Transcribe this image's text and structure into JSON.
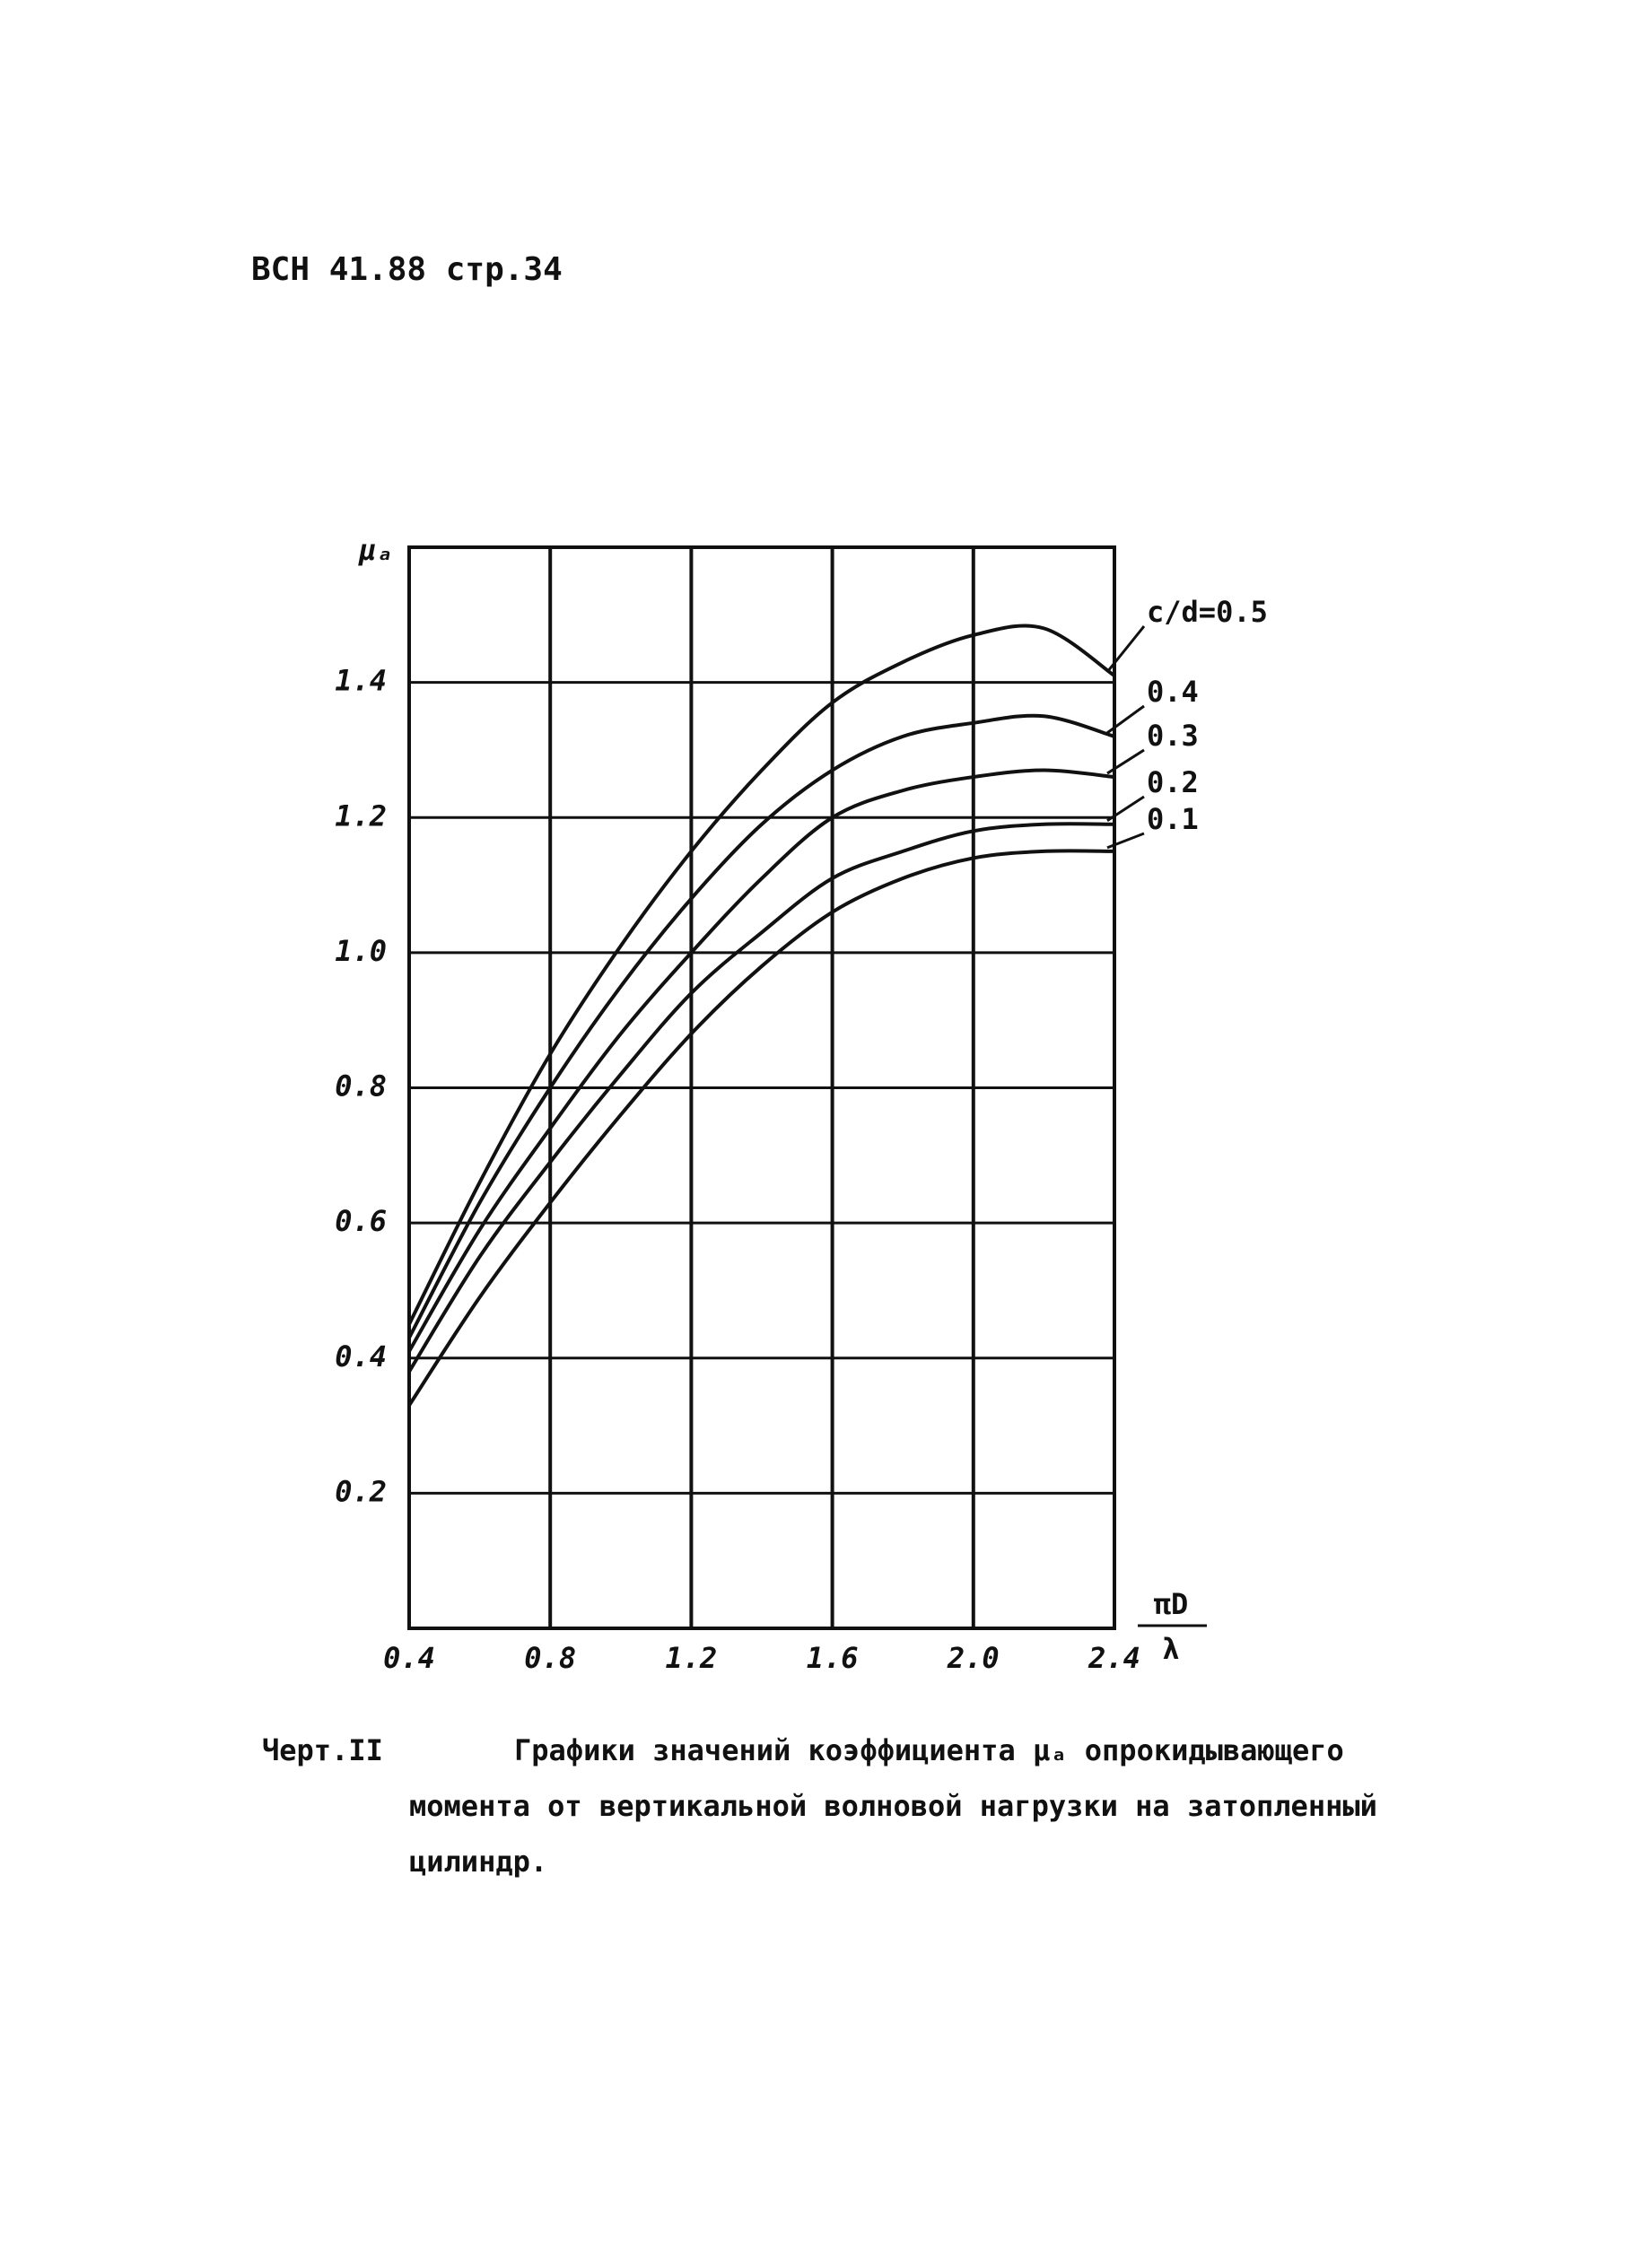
{
  "header": "ВСН 41.88 стр.34",
  "chart_data": {
    "type": "line",
    "y_label": "μₐ",
    "x_label_numerator": "πD",
    "x_label_denominator": "λ",
    "x": [
      0.4,
      0.6,
      0.8,
      1.0,
      1.2,
      1.4,
      1.6,
      1.8,
      2.0,
      2.2,
      2.4
    ],
    "series": [
      {
        "name": "c/d=0.5",
        "color": "#111111",
        "values": [
          0.45,
          0.66,
          0.85,
          1.01,
          1.15,
          1.27,
          1.37,
          1.43,
          1.47,
          1.48,
          1.41
        ]
      },
      {
        "name": "0.4",
        "color": "#111111",
        "values": [
          0.43,
          0.63,
          0.8,
          0.95,
          1.08,
          1.19,
          1.27,
          1.32,
          1.34,
          1.35,
          1.32
        ]
      },
      {
        "name": "0.3",
        "color": "#111111",
        "values": [
          0.41,
          0.59,
          0.74,
          0.88,
          1.0,
          1.11,
          1.2,
          1.24,
          1.26,
          1.27,
          1.26
        ]
      },
      {
        "name": "0.2",
        "color": "#111111",
        "values": [
          0.38,
          0.55,
          0.69,
          0.82,
          0.94,
          1.03,
          1.11,
          1.15,
          1.18,
          1.19,
          1.19
        ]
      },
      {
        "name": "0.1",
        "color": "#111111",
        "values": [
          0.33,
          0.49,
          0.63,
          0.76,
          0.88,
          0.98,
          1.06,
          1.11,
          1.14,
          1.15,
          1.15
        ]
      }
    ],
    "xlim": [
      0.4,
      2.4
    ],
    "xticks": [
      0.4,
      0.8,
      1.2,
      1.6,
      {
        "value": 2,
        "label": "2.0"
      },
      2.4
    ],
    "ylim": [
      0,
      1.6
    ],
    "yticks": [
      0.2,
      0.4,
      0.6,
      0.8,
      {
        "value": 1,
        "label": "1.0"
      },
      1.2,
      1.4
    ],
    "grid": true
  },
  "caption": {
    "label": "Черт.II",
    "text": "Графики значений коэффициента μₐ опрокидывающего момента от вертикальной волновой нагрузки на затопленный цилиндр."
  }
}
